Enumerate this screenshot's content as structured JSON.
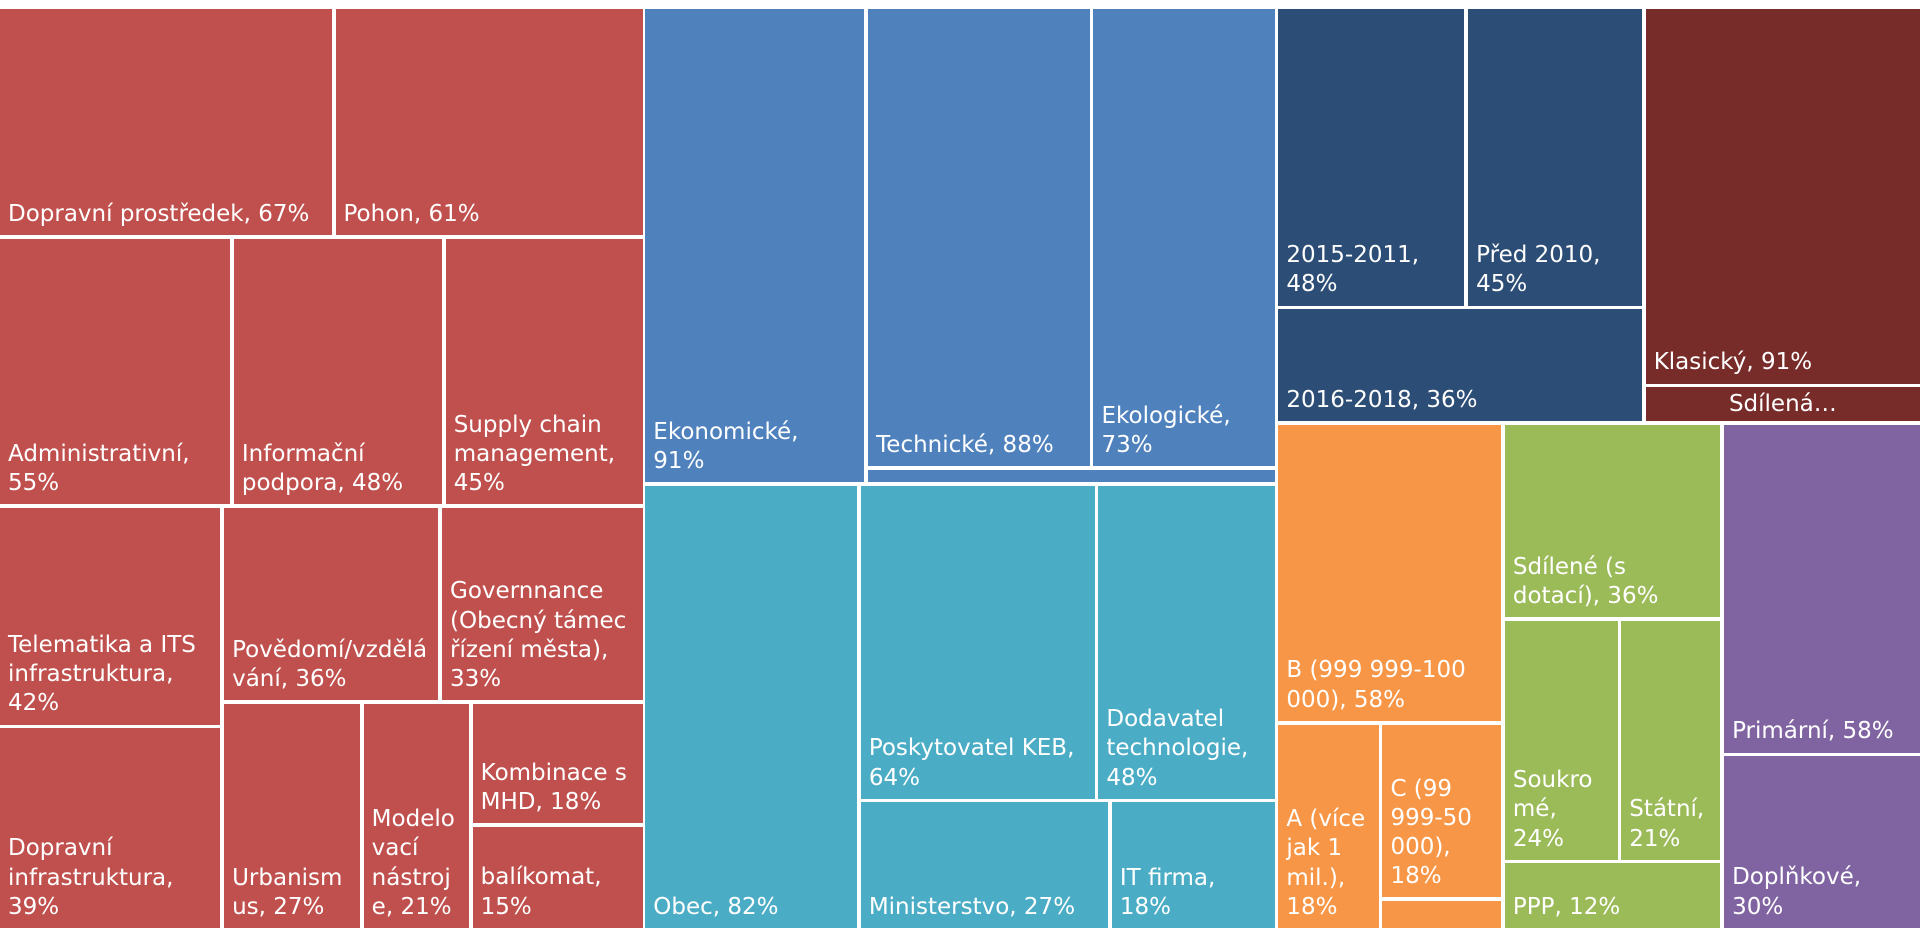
{
  "chart_data": {
    "type": "treemap",
    "groups": [
      {
        "color": "#c0504d",
        "items": [
          {
            "label": "Dopravní prostředek, 67%",
            "value": 67
          },
          {
            "label": "Pohon, 61%",
            "value": 61
          },
          {
            "label": "Administrativní, 55%",
            "value": 55
          },
          {
            "label": "Informační podpora, 48%",
            "value": 48
          },
          {
            "label": "Supply chain management, 45%",
            "value": 45
          },
          {
            "label": "Telematika a ITS infrastruktura, 42%",
            "value": 42
          },
          {
            "label": "Povědomí/vzdělávání, 36%",
            "value": 36
          },
          {
            "label": "Governnance (Obecný támec řízení města), 33%",
            "value": 33
          },
          {
            "label": "Dopravní infrastruktura, 39%",
            "value": 39
          },
          {
            "label": "Urbanismus, 27%",
            "value": 27
          },
          {
            "label": "Modelovací nástroje, 21%",
            "value": 21
          },
          {
            "label": "Kombinace s MHD, 18%",
            "value": 18
          },
          {
            "label": "balíkomat, 15%",
            "value": 15
          }
        ]
      },
      {
        "color": "#4f81bd",
        "items": [
          {
            "label": "Ekonomické, 91%",
            "value": 91
          },
          {
            "label": "Technické, 88%",
            "value": 88
          },
          {
            "label": "Ekologické, 73%",
            "value": 73
          }
        ]
      },
      {
        "color": "#4bacc6",
        "items": [
          {
            "label": "Obec, 82%",
            "value": 82
          },
          {
            "label": "Poskytovatel KEB, 64%",
            "value": 64
          },
          {
            "label": "Dodavatel technologie, 48%",
            "value": 48
          },
          {
            "label": "Ministerstvo, 27%",
            "value": 27
          },
          {
            "label": "IT firma, 18%",
            "value": 18
          }
        ]
      },
      {
        "color": "#2c4d75",
        "items": [
          {
            "label": "2015-2011, 48%",
            "value": 48
          },
          {
            "label": "Před 2010, 45%",
            "value": 45
          },
          {
            "label": "2016-2018, 36%",
            "value": 36
          }
        ]
      },
      {
        "color": "#772c2a",
        "items": [
          {
            "label": "Klasický, 91%",
            "value": 91
          },
          {
            "label": "Sdílená…"
          }
        ]
      },
      {
        "color": "#f79646",
        "items": [
          {
            "label": "B (999 999-100 000), 58%",
            "value": 58
          },
          {
            "label": "A (více jak 1 mil.), 18%",
            "value": 18
          },
          {
            "label": "C (99 999-50 000), 18%",
            "value": 18
          }
        ]
      },
      {
        "color": "#9bbb59",
        "items": [
          {
            "label": "Sdílené (s dotací), 36%",
            "value": 36
          },
          {
            "label": "Soukromé, 24%",
            "value": 24
          },
          {
            "label": "Státní, 21%",
            "value": 21
          },
          {
            "label": "PPP, 12%",
            "value": 12
          }
        ]
      },
      {
        "color": "#8064a2",
        "items": [
          {
            "label": "Primární, 58%",
            "value": 58
          },
          {
            "label": "Doplňkové, 30%",
            "value": 30
          }
        ]
      }
    ]
  }
}
